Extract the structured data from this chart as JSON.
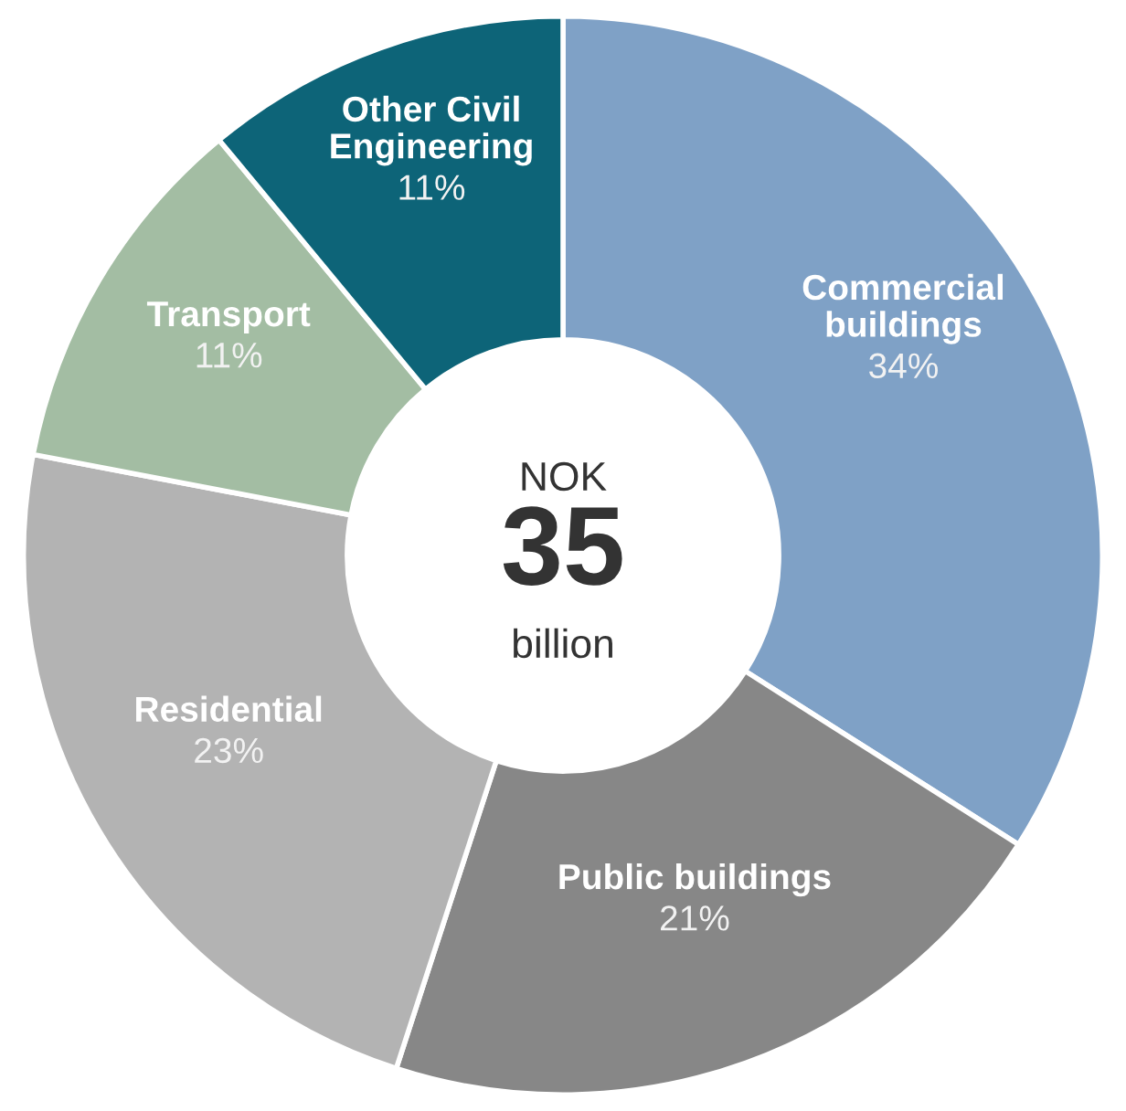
{
  "chart_data": {
    "type": "donut",
    "categories": [
      "Commercial buildings",
      "Public buildings",
      "Residential",
      "Transport",
      "Other Civil Engineering"
    ],
    "values": [
      34,
      21,
      23,
      11,
      11
    ],
    "value_labels": [
      "34%",
      "21%",
      "23%",
      "11%",
      "11%"
    ],
    "colors": [
      "#7fa1c6",
      "#878787",
      "#b3b3b3",
      "#a3bda3",
      "#0d6478"
    ],
    "annotations": [
      "NOK",
      "35",
      "billion"
    ],
    "legend": false
  }
}
